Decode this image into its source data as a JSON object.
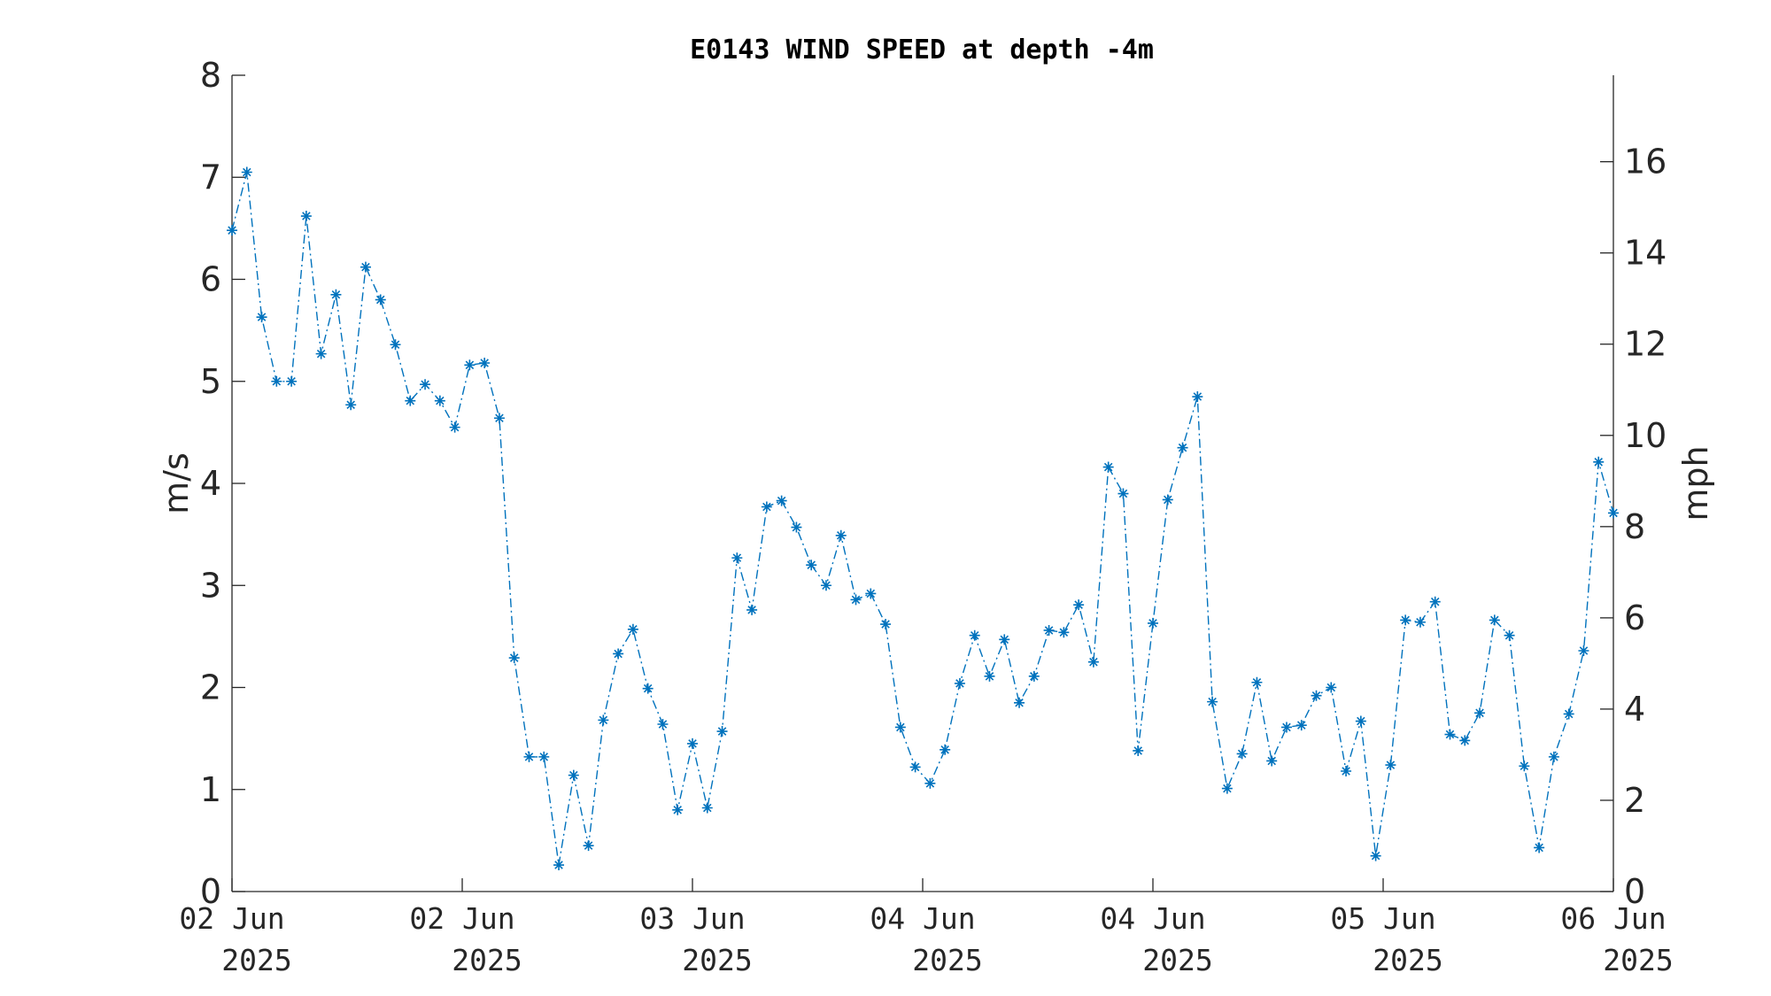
{
  "chart_data": {
    "type": "line",
    "title": "E0143 WIND SPEED at depth -4m",
    "ylabel": "m/s",
    "ylabel_right": "mph",
    "ylim": [
      0,
      8
    ],
    "ylim_right": [
      0,
      17.8955
    ],
    "yticks": [
      "0",
      "1",
      "2",
      "3",
      "4",
      "5",
      "6",
      "7",
      "8"
    ],
    "yticks_right": [
      "0",
      "2",
      "4",
      "6",
      "8",
      "10",
      "12",
      "14",
      "16"
    ],
    "xlim": [
      0,
      6
    ],
    "xticks": [
      {
        "line1": "02 Jun",
        "line2": "2025"
      },
      {
        "line1": "02 Jun",
        "line2": "2025"
      },
      {
        "line1": "03 Jun",
        "line2": "2025"
      },
      {
        "line1": "04 Jun",
        "line2": "2025"
      },
      {
        "line1": "04 Jun",
        "line2": "2025"
      },
      {
        "line1": "05 Jun",
        "line2": "2025"
      },
      {
        "line1": "06 Jun",
        "line2": "2025"
      }
    ],
    "line_style": "dash-dot",
    "marker": "asterisk",
    "grid": false,
    "series": [
      {
        "values": [
          6.48,
          7.05,
          5.63,
          5.0,
          5.0,
          6.62,
          5.27,
          5.85,
          4.77,
          6.12,
          5.8,
          5.36,
          4.81,
          4.97,
          4.81,
          4.55,
          5.16,
          5.18,
          4.64,
          2.29,
          1.32,
          1.32,
          0.26,
          1.14,
          0.45,
          1.68,
          2.33,
          2.57,
          1.99,
          1.64,
          0.8,
          1.45,
          0.82,
          1.57,
          3.27,
          2.76,
          3.77,
          3.83,
          3.57,
          3.2,
          3.0,
          3.49,
          2.86,
          2.92,
          2.62,
          1.61,
          1.22,
          1.06,
          1.39,
          2.04,
          2.51,
          2.11,
          2.47,
          1.85,
          2.11,
          2.56,
          2.54,
          2.81,
          2.25,
          4.16,
          3.9,
          1.38,
          2.63,
          3.84,
          4.35,
          4.85,
          1.86,
          1.01,
          1.35,
          2.05,
          1.28,
          1.61,
          1.63,
          1.92,
          2.0,
          1.18,
          1.67,
          0.35,
          1.24,
          2.66,
          2.64,
          2.84,
          1.54,
          1.48,
          1.75,
          2.66,
          2.51,
          1.23,
          0.43,
          1.32,
          1.74,
          2.36,
          4.21,
          3.71
        ],
        "color": "#0072BD"
      }
    ]
  }
}
